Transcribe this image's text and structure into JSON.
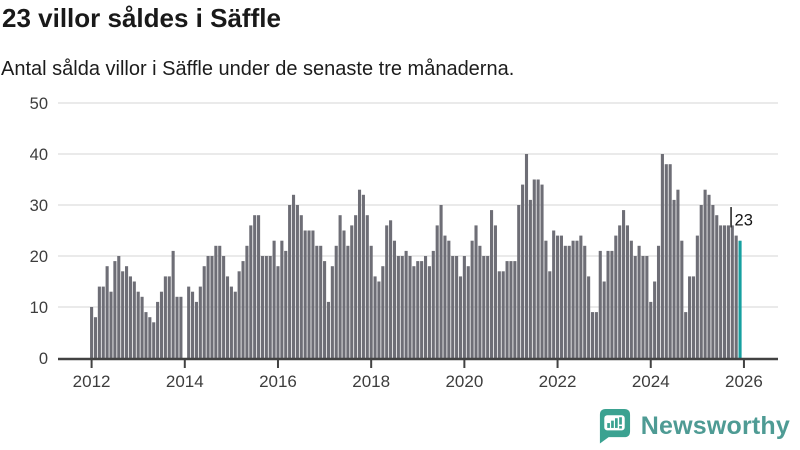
{
  "title": "23 villor såldes i Säffle",
  "subtitle": "Antal sålda villor i Säffle under de senaste tre månaderna.",
  "annotation": {
    "label": "23"
  },
  "footer": {
    "brand": "Newsworthy",
    "logo_icon": "speech-bubble-bar-chart"
  },
  "colors": {
    "bar": "#6e6e76",
    "accent": "#16a0a0",
    "grid": "#e4e4e4",
    "axis_line": "#424242",
    "tick_text": "#3d3d3d",
    "annotation_text": "#141414",
    "brand_teal": "#3ba291",
    "brand_text": "#4e9b94",
    "background": "#ffffff"
  },
  "chart_data": {
    "type": "bar",
    "title": "23 villor såldes i Säffle",
    "subtitle": "Antal sålda villor i Säffle under de senaste tre månaderna.",
    "frequency": "monthly",
    "x_start": "2012-01",
    "x_end": "2025-12",
    "xlabel": "",
    "ylabel": "",
    "ylim": [
      0,
      50
    ],
    "y_ticks": [
      0,
      10,
      20,
      30,
      40,
      50
    ],
    "x_tick_labels": [
      "2012",
      "2014",
      "2016",
      "2018",
      "2020",
      "2022",
      "2024",
      "2026"
    ],
    "grid": true,
    "legend": "none",
    "highlighted_last_value": 23,
    "series_name": "Sålda villor, rullande 3 månader",
    "values_by_year": {
      "2012": [
        10,
        8,
        14,
        14,
        18,
        13,
        19,
        20,
        17,
        18,
        16,
        15
      ],
      "2013": [
        13,
        12,
        9,
        8,
        7,
        11,
        13,
        16,
        16,
        21,
        12,
        12
      ],
      "2014": [
        0,
        14,
        13,
        11,
        14,
        18,
        20,
        20,
        22,
        22,
        20,
        16
      ],
      "2015": [
        14,
        13,
        17,
        19,
        22,
        26,
        28,
        28,
        20,
        20,
        20,
        23
      ],
      "2016": [
        18,
        23,
        21,
        30,
        32,
        30,
        28,
        25,
        25,
        25,
        22,
        22
      ],
      "2017": [
        19,
        11,
        18,
        22,
        28,
        25,
        22,
        26,
        28,
        33,
        32,
        28
      ],
      "2018": [
        22,
        16,
        15,
        18,
        26,
        27,
        23,
        20,
        20,
        21,
        20,
        18
      ],
      "2019": [
        19,
        19,
        20,
        18,
        21,
        26,
        30,
        24,
        23,
        20,
        20,
        16
      ],
      "2020": [
        20,
        18,
        23,
        26,
        22,
        20,
        20,
        29,
        26,
        17,
        17,
        19
      ],
      "2021": [
        19,
        19,
        30,
        34,
        40,
        31,
        35,
        35,
        34,
        23,
        17,
        25
      ],
      "2022": [
        24,
        24,
        22,
        22,
        23,
        23,
        24,
        22,
        16,
        9,
        9,
        21
      ],
      "2023": [
        15,
        21,
        21,
        24,
        26,
        29,
        26,
        23,
        20,
        22,
        20,
        20
      ],
      "2024": [
        11,
        15,
        22,
        40,
        38,
        38,
        31,
        33,
        23,
        9,
        16,
        16
      ],
      "2025": [
        24,
        30,
        33,
        32,
        30,
        28,
        26,
        26,
        26,
        26,
        24,
        23
      ]
    }
  }
}
